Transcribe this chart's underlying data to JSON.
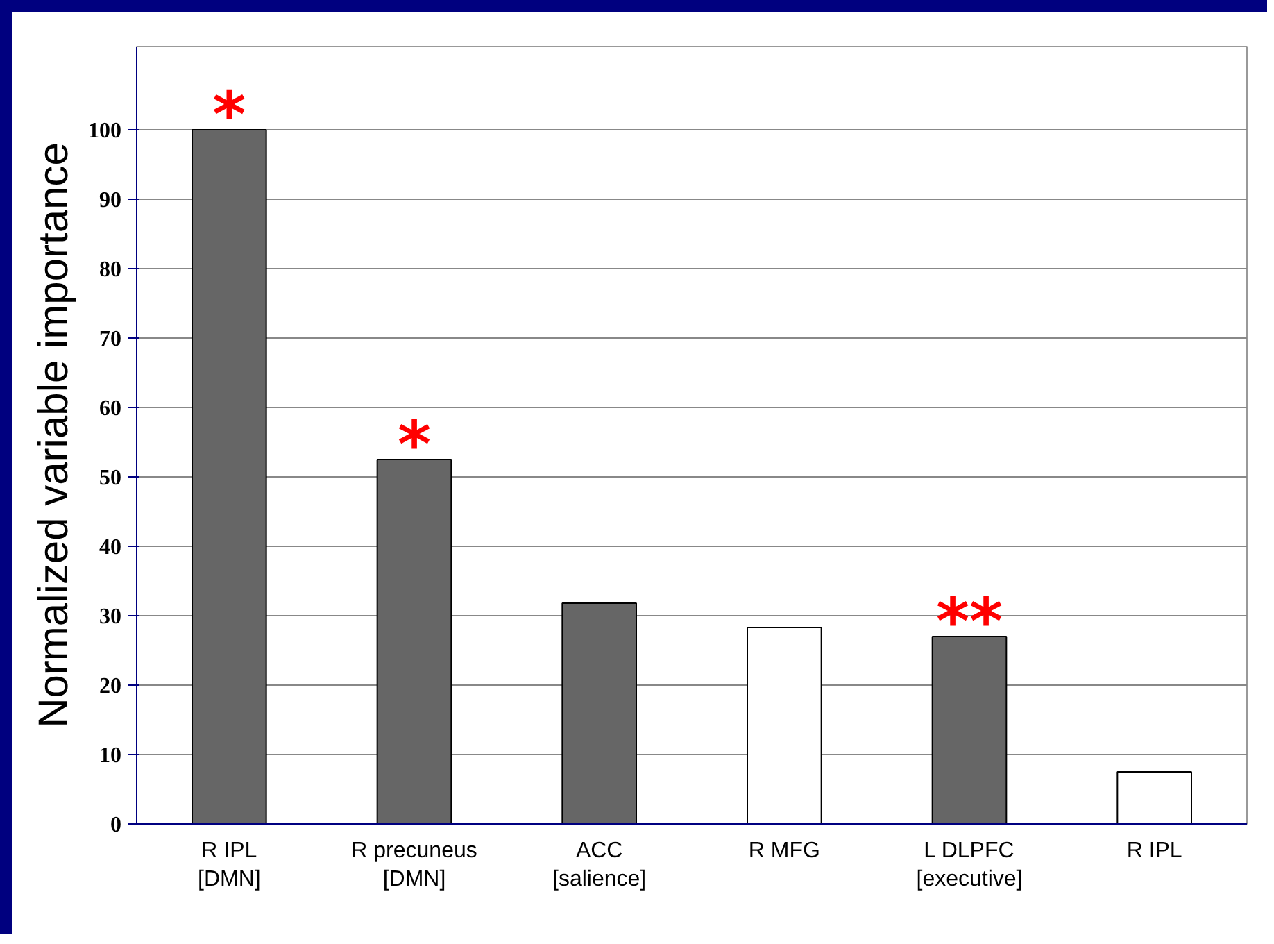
{
  "chart_data": {
    "type": "bar",
    "ylabel": "Normalized variable importance",
    "categories": [
      "R IPL\n[DMN]",
      "R precuneus\n[DMN]",
      "ACC\n[salience]",
      "R MFG",
      "L DLPFC\n[executive]",
      "R IPL"
    ],
    "values": [
      100,
      52.5,
      31.8,
      28.3,
      27,
      7.5
    ],
    "colors": [
      "#666666",
      "#666666",
      "#666666",
      "#ffffff",
      "#666666",
      "#ffffff"
    ],
    "ylim": [
      0,
      112
    ],
    "yticks": [
      0,
      10,
      20,
      30,
      40,
      50,
      60,
      70,
      80,
      90,
      100
    ],
    "grid": "y",
    "annotations": [
      {
        "text": "*",
        "x": "R IPL\n[DMN]",
        "y": 100
      },
      {
        "text": "*",
        "x": "R precuneus\n[DMN]",
        "y": 52.5
      },
      {
        "text": "**",
        "x": "L DLPFC\n[executive]",
        "y": 27
      }
    ]
  }
}
